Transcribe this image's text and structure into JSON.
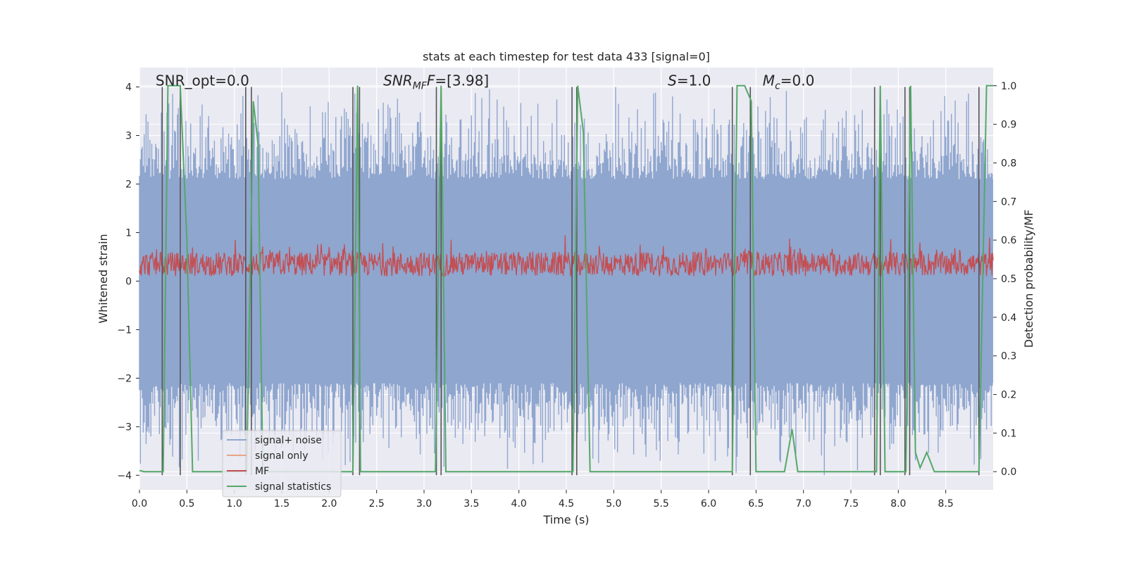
{
  "chart_data": {
    "type": "line",
    "title": "stats at each timestep for test data 433 [signal=0]",
    "xlabel": "Time (s)",
    "ylabel": "Whitened strain",
    "ylabel_right": "Detection probability/MF",
    "xlim": [
      0.0,
      9.0
    ],
    "ylim": [
      -4.3,
      4.4
    ],
    "ylim_right": [
      -0.047,
      1.047
    ],
    "xticks": [
      "0.0",
      "0.5",
      "1.0",
      "1.5",
      "2.0",
      "2.5",
      "3.0",
      "3.5",
      "4.0",
      "4.5",
      "5.0",
      "5.5",
      "6.0",
      "6.5",
      "7.0",
      "7.5",
      "8.0",
      "8.5"
    ],
    "yticks": [
      "4",
      "3",
      "2",
      "1",
      "0",
      "−1",
      "−2",
      "−3",
      "−4"
    ],
    "yticks_right": [
      "1.0",
      "0.9",
      "0.8",
      "0.7",
      "0.6",
      "0.5",
      "0.4",
      "0.3",
      "0.2",
      "0.1",
      "0.0"
    ],
    "grid": true,
    "legend_position": "lower-left",
    "annotations": [
      {
        "text": "SNR_opt=0.0",
        "x": 0.2
      },
      {
        "text": "SNR",
        "sub": "MF",
        "rest": "F=[3.98]",
        "x": 2.6
      },
      {
        "text": "S",
        "rest": "=1.0",
        "x": 5.6
      },
      {
        "text": "M",
        "sub": "c",
        "rest": "=0.0",
        "x": 6.6
      }
    ],
    "series": [
      {
        "name": "signal+ noise",
        "color": "#8fa6cf",
        "kind": "noise",
        "range": [
          -4.0,
          4.0
        ],
        "band": [
          -2.1,
          2.1
        ]
      },
      {
        "name": "signal only",
        "color": "#e8a586",
        "kind": "flat"
      },
      {
        "name": "MF",
        "color": "#c44e52",
        "kind": "noise",
        "range": [
          0.07,
          0.95
        ],
        "center": 0.35
      },
      {
        "name": "signal statistics",
        "color": "#55a868",
        "axis": "right",
        "x": [
          0.0,
          0.05,
          0.25,
          0.3,
          0.43,
          0.5,
          0.56,
          1.1,
          1.13,
          1.2,
          1.25,
          1.3,
          2.25,
          2.3,
          2.33,
          2.42,
          3.12,
          3.18,
          3.23,
          4.57,
          4.62,
          4.68,
          4.75,
          6.25,
          6.3,
          6.38,
          6.45,
          6.5,
          6.8,
          6.88,
          6.94,
          7.77,
          7.81,
          7.86,
          8.08,
          8.13,
          8.18,
          8.23,
          8.3,
          8.38,
          8.85,
          8.93,
          9.0
        ],
        "y": [
          0.003,
          0.0,
          0.0,
          1.0,
          1.0,
          0.6,
          0.0,
          0.0,
          0.0,
          0.96,
          0.85,
          0.0,
          0.0,
          1.0,
          0.0,
          0.0,
          0.0,
          1.0,
          0.0,
          0.0,
          1.0,
          0.88,
          0.0,
          0.0,
          1.0,
          1.0,
          0.96,
          0.0,
          0.0,
          0.11,
          0.0,
          0.0,
          1.0,
          0.0,
          0.0,
          1.0,
          0.05,
          0.01,
          0.05,
          0.0,
          0.0,
          1.0,
          1.0
        ]
      }
    ],
    "vertical_lines_x": [
      0.24,
      0.43,
      1.12,
      1.18,
      2.25,
      2.32,
      3.13,
      3.18,
      4.56,
      4.61,
      6.25,
      6.44,
      7.75,
      7.81,
      8.07,
      8.12,
      8.85
    ],
    "vertical_line_range": [
      -4.0,
      4.0
    ],
    "colors": {
      "background": "#eaeaf2",
      "grid": "#ffffff",
      "vline": "#555555"
    }
  }
}
